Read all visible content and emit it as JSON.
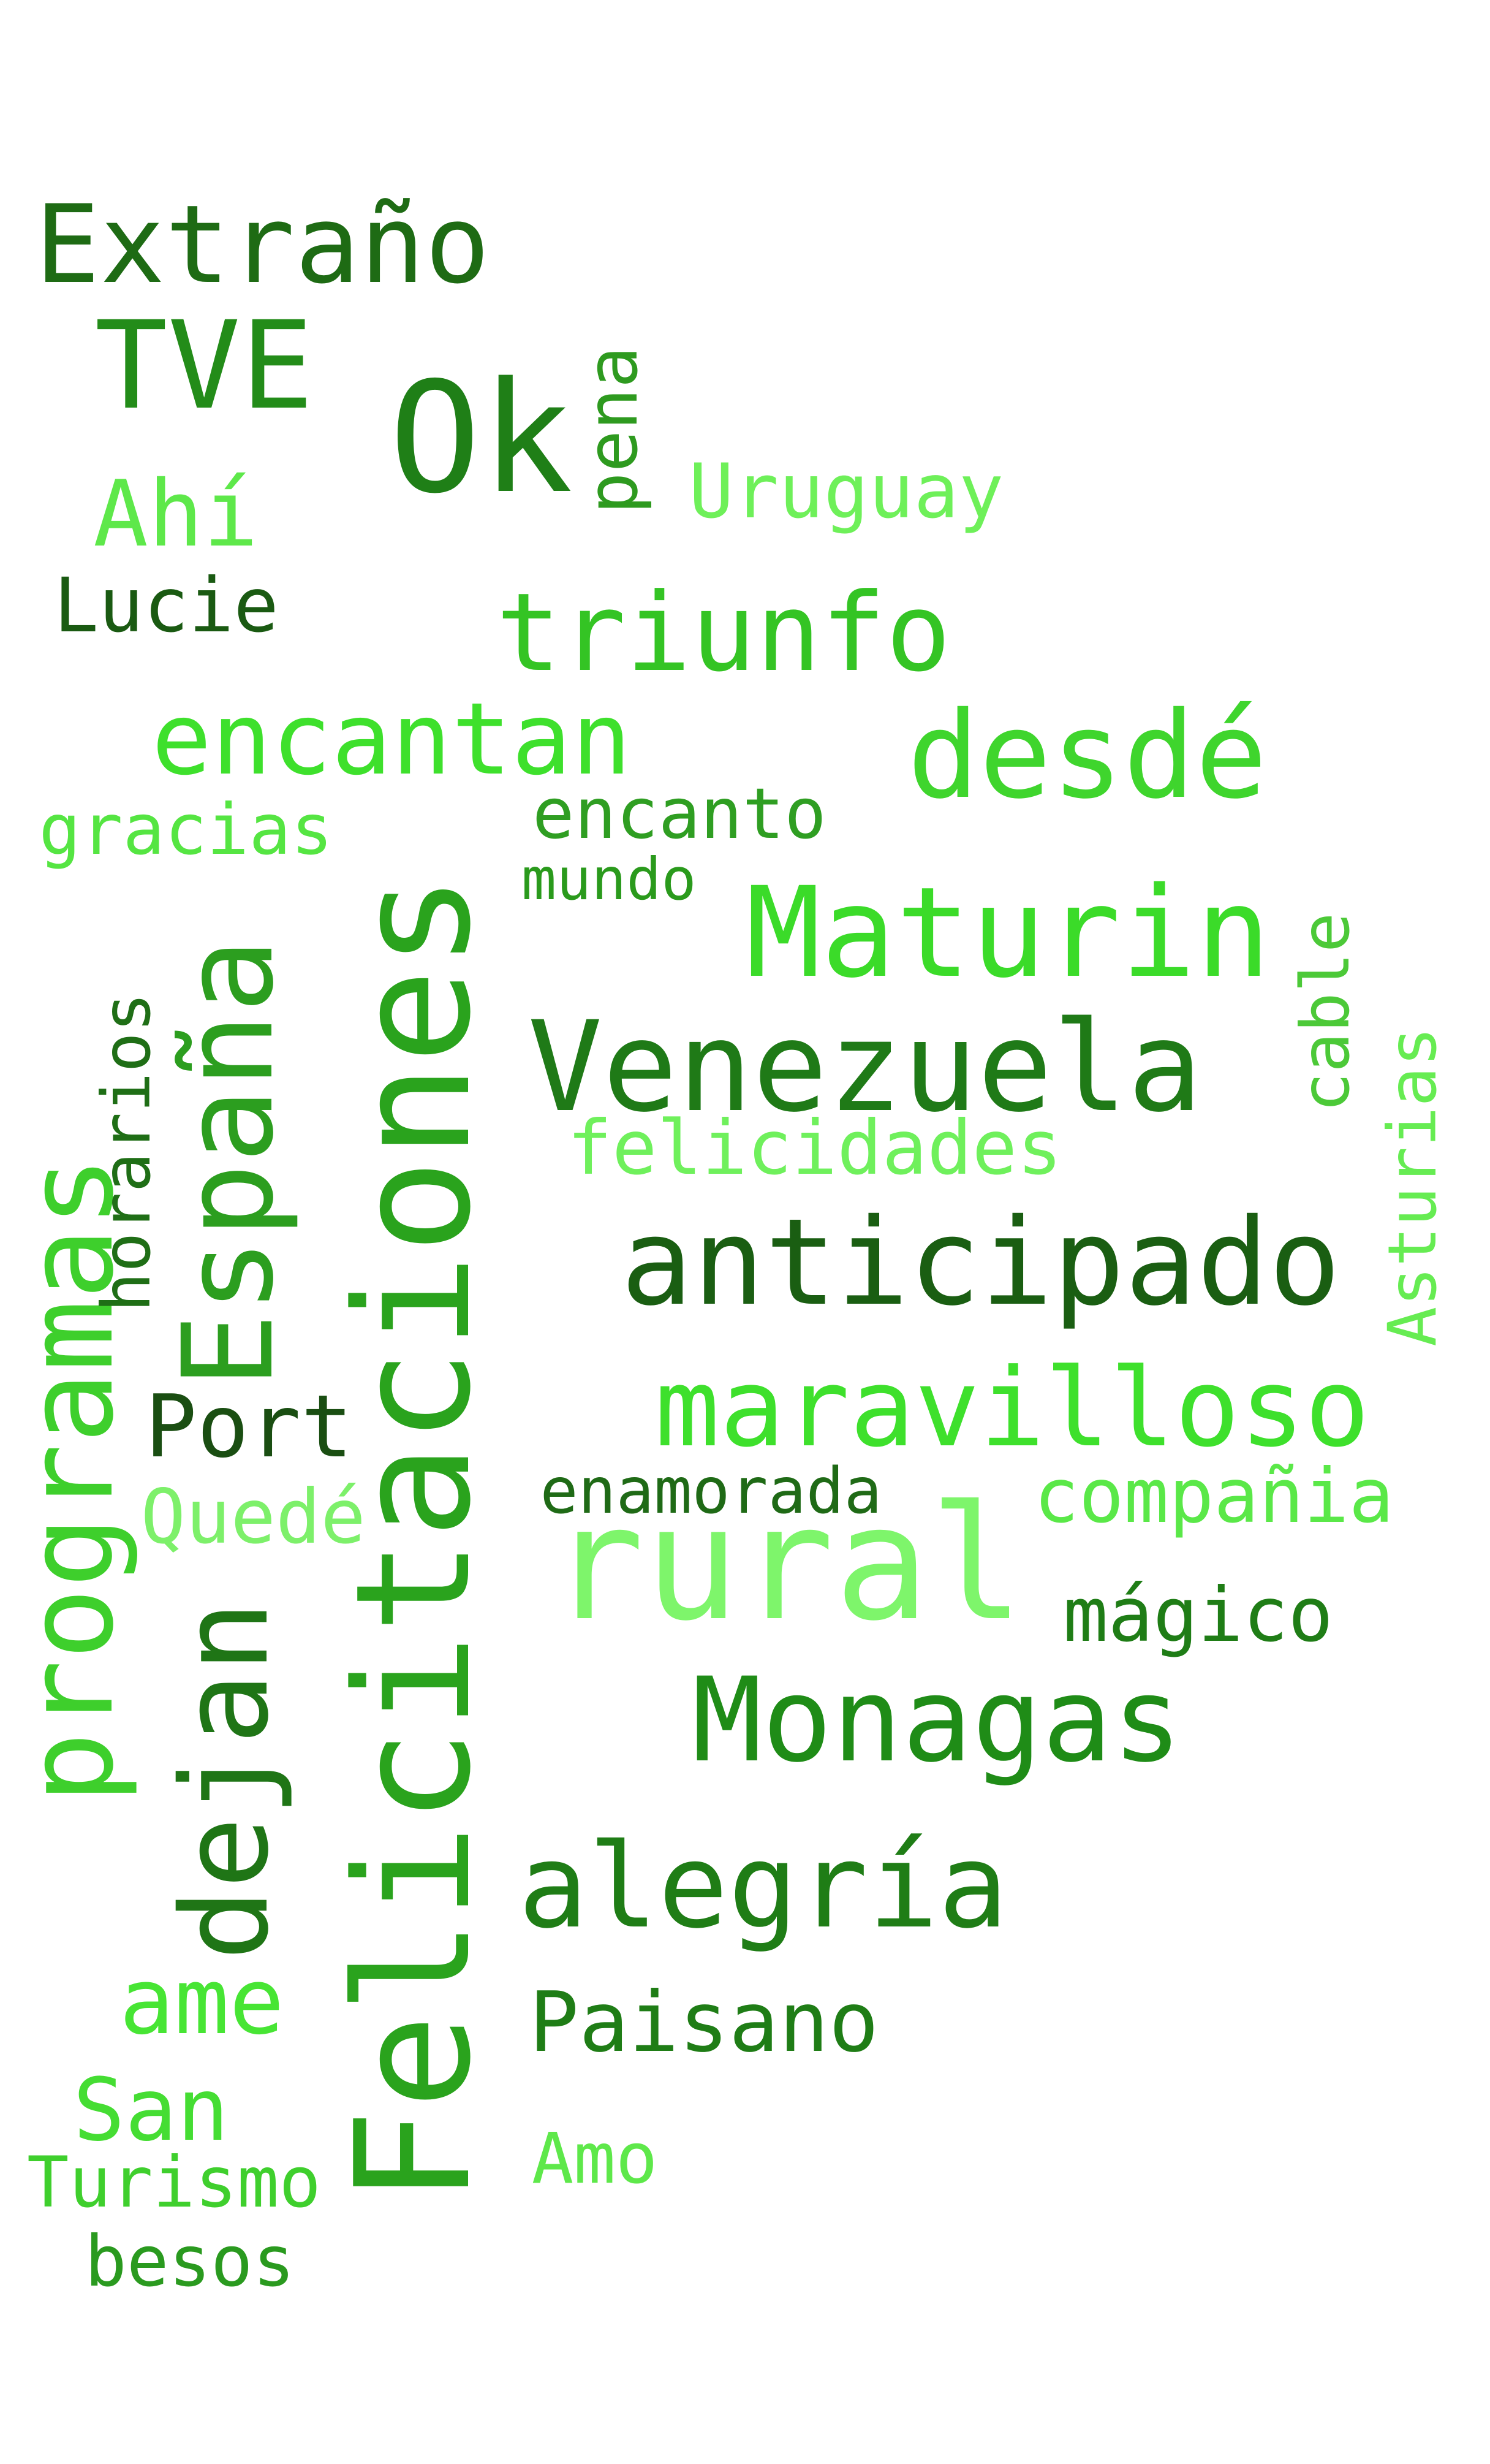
{
  "words": [
    {
      "text": "Extraño",
      "color": "#1e6b14"
    },
    {
      "text": "TVE",
      "color": "#238c19"
    },
    {
      "text": "Ok",
      "color": "#1f7f17"
    },
    {
      "text": "pena",
      "color": "#2e9a1f"
    },
    {
      "text": "Uruguay",
      "color": "#6ef059"
    },
    {
      "text": "Ahí",
      "color": "#5ee84a"
    },
    {
      "text": "Lucie",
      "color": "#1a5a12"
    },
    {
      "text": "triunfo",
      "color": "#34c424"
    },
    {
      "text": "encantan",
      "color": "#3ee02c"
    },
    {
      "text": "desdé",
      "color": "#3fd52d"
    },
    {
      "text": "gracias",
      "color": "#55e542"
    },
    {
      "text": "encanto",
      "color": "#2f9e22"
    },
    {
      "text": "mundo",
      "color": "#2a9a1c"
    },
    {
      "text": "Maturin",
      "color": "#3bdb29"
    },
    {
      "text": "Felicitaciones",
      "color": "#2aa31d"
    },
    {
      "text": "España",
      "color": "#2c9e1f"
    },
    {
      "text": "programas",
      "color": "#3ecf2c"
    },
    {
      "text": "horarios",
      "color": "#1f6e16"
    },
    {
      "text": "cable",
      "color": "#4cc938"
    },
    {
      "text": "Venezuela",
      "color": "#1f7a17"
    },
    {
      "text": "felicidades",
      "color": "#6ff05c"
    },
    {
      "text": "Asturias",
      "color": "#66ec52"
    },
    {
      "text": "anticipado",
      "color": "#1a5e12"
    },
    {
      "text": "maravilloso",
      "color": "#3ee02c"
    },
    {
      "text": "Port",
      "color": "#1a4e12"
    },
    {
      "text": "enamorada",
      "color": "#1f6a16"
    },
    {
      "text": "compañia",
      "color": "#5ae848"
    },
    {
      "text": "Quedé",
      "color": "#7df06a"
    },
    {
      "text": "rural",
      "color": "#7ef56b"
    },
    {
      "text": "mágico",
      "color": "#1f7d16"
    },
    {
      "text": "dejan",
      "color": "#1f7516"
    },
    {
      "text": "Monagas",
      "color": "#1f8c17"
    },
    {
      "text": "alegría",
      "color": "#1f7d16"
    },
    {
      "text": "ame",
      "color": "#47e534"
    },
    {
      "text": "Paisano",
      "color": "#1f7d16"
    },
    {
      "text": "San",
      "color": "#45dd33"
    },
    {
      "text": "Amo",
      "color": "#5ee84a"
    },
    {
      "text": "Turismo",
      "color": "#3fcf2d"
    },
    {
      "text": "besos",
      "color": "#2a9a1f"
    }
  ]
}
